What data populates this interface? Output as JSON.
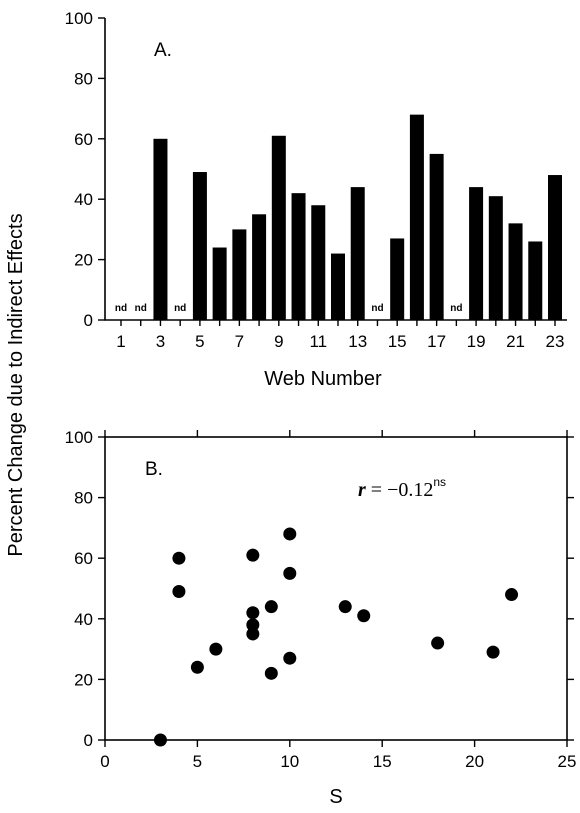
{
  "y_axis_title": "Percent Change due to Indirect Effects",
  "chart_data": [
    {
      "type": "bar",
      "panel_label": "A.",
      "xlabel": "Web Number",
      "ylabel": "",
      "ylim": [
        0,
        100
      ],
      "yticks": [
        0,
        20,
        40,
        60,
        80,
        100
      ],
      "xtick_labels": [
        "1",
        "3",
        "5",
        "7",
        "9",
        "11",
        "13",
        "15",
        "17",
        "19",
        "21",
        "23"
      ],
      "categories": [
        "1",
        "2",
        "3",
        "4",
        "5",
        "6",
        "7",
        "8",
        "9",
        "10",
        "11",
        "12",
        "13",
        "14",
        "15",
        "16",
        "17",
        "18",
        "19",
        "20",
        "21",
        "22",
        "23"
      ],
      "values": [
        null,
        null,
        60,
        null,
        49,
        24,
        30,
        35,
        61,
        42,
        38,
        22,
        44,
        null,
        27,
        68,
        55,
        null,
        44,
        41,
        32,
        26,
        48
      ],
      "nd_label": "nd",
      "nd_categories": [
        "1",
        "2",
        "4",
        "14",
        "18"
      ]
    },
    {
      "type": "scatter",
      "panel_label": "B.",
      "xlabel": "S",
      "ylabel": "",
      "xlim": [
        0,
        25
      ],
      "ylim": [
        0,
        100
      ],
      "xticks": [
        0,
        5,
        10,
        15,
        20,
        25
      ],
      "yticks": [
        0,
        20,
        40,
        60,
        80,
        100
      ],
      "annotation": {
        "text": "r = −0.12",
        "superscript": "ns"
      },
      "points": [
        {
          "x": 3,
          "y": 0
        },
        {
          "x": 4,
          "y": 60
        },
        {
          "x": 4,
          "y": 49
        },
        {
          "x": 5,
          "y": 24
        },
        {
          "x": 6,
          "y": 30
        },
        {
          "x": 8,
          "y": 61
        },
        {
          "x": 8,
          "y": 42
        },
        {
          "x": 8,
          "y": 38
        },
        {
          "x": 8,
          "y": 35
        },
        {
          "x": 9,
          "y": 44
        },
        {
          "x": 9,
          "y": 22
        },
        {
          "x": 10,
          "y": 68
        },
        {
          "x": 10,
          "y": 55
        },
        {
          "x": 10,
          "y": 27
        },
        {
          "x": 13,
          "y": 44
        },
        {
          "x": 14,
          "y": 41
        },
        {
          "x": 18,
          "y": 32
        },
        {
          "x": 21,
          "y": 29
        },
        {
          "x": 22,
          "y": 48
        }
      ]
    }
  ]
}
